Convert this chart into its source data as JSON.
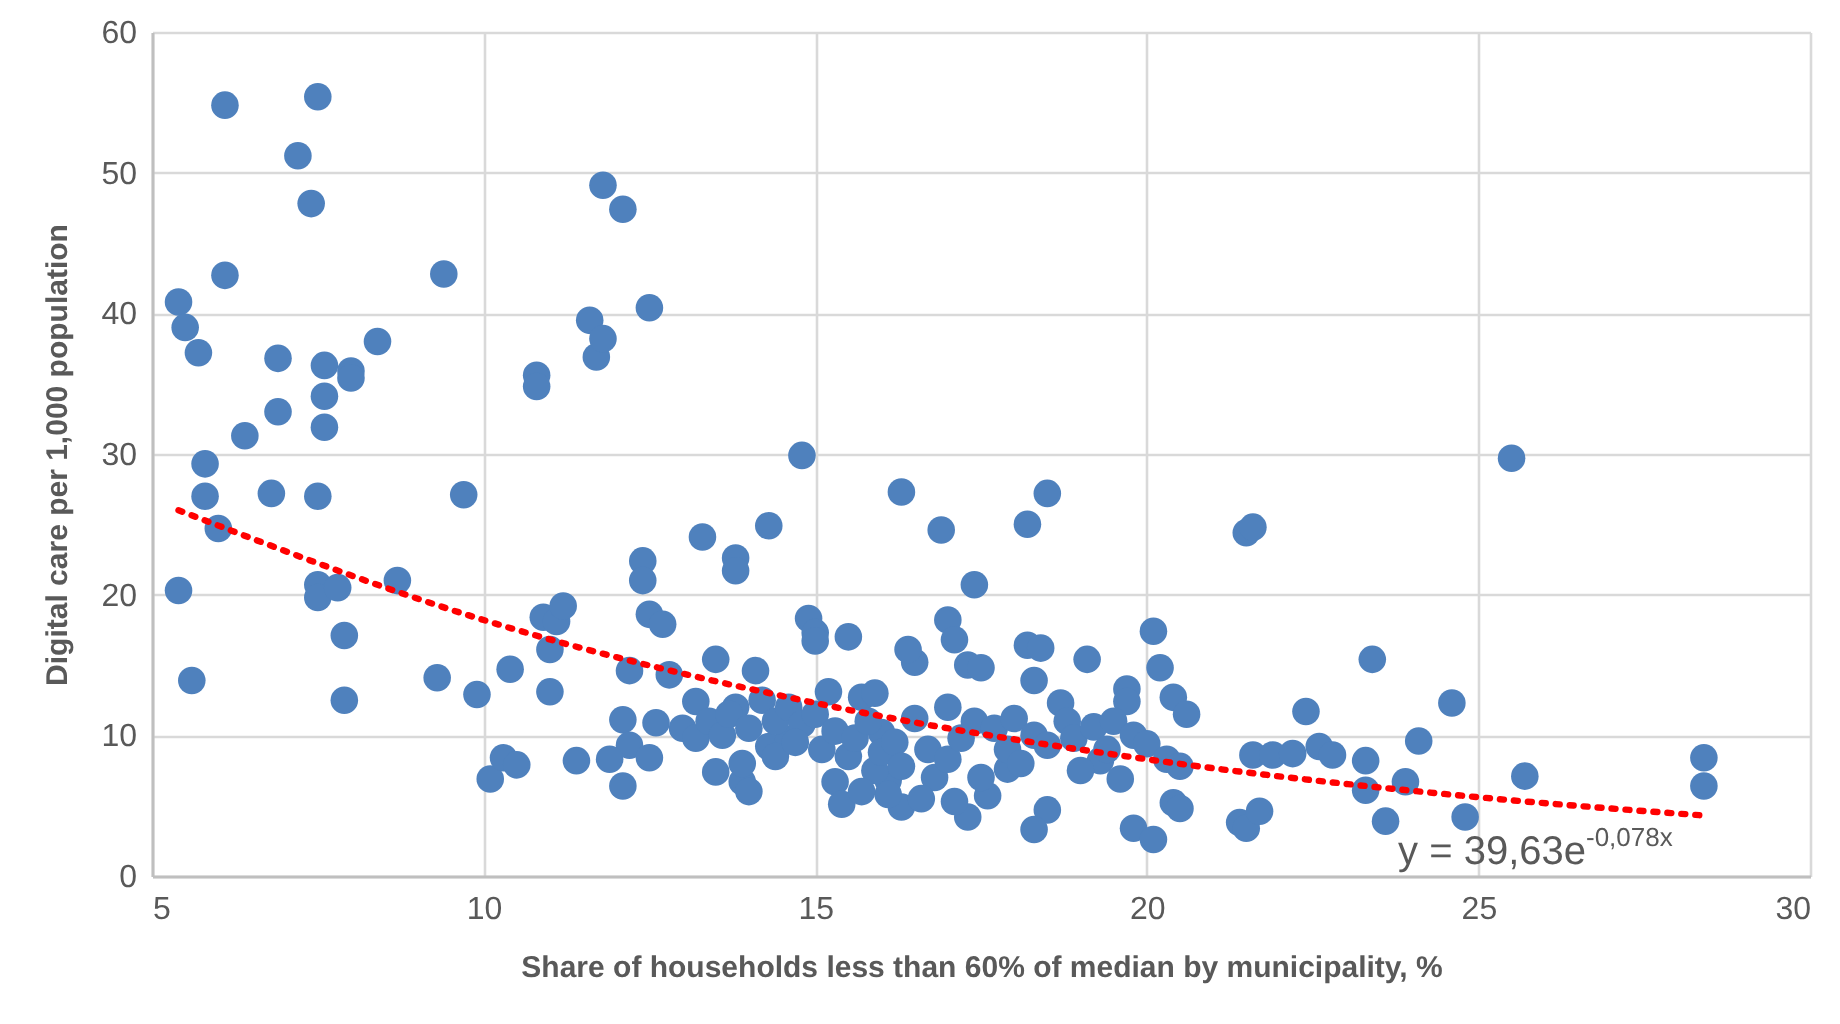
{
  "chart_data": {
    "type": "scatter",
    "xlabel": "Share of households less than 60% of median by municipality, %",
    "ylabel": "Digital care per 1,000 population",
    "xlim": [
      5,
      30
    ],
    "xticks": [
      5,
      10,
      15,
      20,
      25,
      30
    ],
    "ylim": [
      0,
      60
    ],
    "yticks": [
      0,
      10,
      20,
      30,
      40,
      50,
      60
    ],
    "grid": true,
    "marker": "circle",
    "annotations": [
      "y = 39,63e$^{-0,078x}$"
    ],
    "series": [
      {
        "color": "#4f81bd",
        "x": [
          5.4,
          5.5,
          5.7,
          6.1,
          6.1,
          5.8,
          5.8,
          6,
          6.4,
          6.9,
          6.9,
          6.8,
          7.2,
          7.4,
          7.5,
          7.6,
          7.6,
          7.6,
          7.5,
          8,
          8,
          8.4,
          7.5,
          7.5,
          7.8,
          7.9,
          7.9,
          8.7,
          5.4,
          5.6,
          9.4,
          9.7,
          9.3,
          9.9,
          10.1,
          10.3,
          10.5,
          10.4,
          10.8,
          10.8,
          10.9,
          11,
          11,
          11.1,
          11.2,
          11.4,
          11.6,
          11.7,
          11.8,
          11.8,
          12.1,
          12.5,
          12.2,
          12.4,
          12.4,
          12.5,
          12.7,
          12.8,
          12.1,
          12.2,
          12.1,
          12.5,
          11.9,
          12.6,
          13.3,
          13.8,
          13.8,
          13.2,
          13.5,
          13.5,
          13.9,
          14.1,
          14.3,
          14,
          14.3,
          14.6,
          14.8,
          14.9,
          15,
          15,
          15.5,
          15.2,
          15.7,
          15.9,
          15.3,
          15.4,
          16.1,
          16.3,
          16.3,
          16.5,
          16.4,
          16,
          16.9,
          17,
          17.4,
          17.1,
          17.3,
          17.5,
          17.3,
          17.1,
          17.6,
          17.9,
          18.2,
          18.5,
          18.2,
          18.4,
          18.3,
          18.7,
          19.1,
          19.3,
          19.7,
          19.7,
          18.5,
          18.3,
          19.6,
          19.8,
          20.1,
          20.2,
          20.4,
          20.6,
          20.1,
          20.4,
          20.5,
          21.5,
          21.6,
          21.4,
          21.5,
          21.7,
          21.6,
          21.9,
          22.2,
          22.4,
          22.6,
          22.8,
          23.3,
          23.4,
          23.3,
          23.6,
          23.9,
          24.1,
          24.6,
          24.8,
          25.5,
          25.7,
          28.4,
          28.4,
          13,
          13.2,
          13.4,
          13.6,
          13.8,
          13.7,
          14,
          14.2,
          14.4,
          14.6,
          14.8,
          15,
          15.1,
          15.3,
          15.5,
          15.6,
          15.8,
          15.9,
          16,
          16.2,
          16.3,
          16.5,
          16.7,
          16.8,
          17,
          17,
          17.2,
          17.4,
          17.5,
          17.7,
          17.9,
          18,
          18.1,
          18.3,
          18.5,
          18.8,
          18.9,
          19,
          19.2,
          19.4,
          19.5,
          19.8,
          20,
          20.3,
          20.5,
          14.4,
          14.7,
          13.9,
          16.6,
          16.1,
          15.7
        ],
        "values": [
          40.8,
          39,
          37.2,
          54.8,
          42.7,
          29.3,
          27,
          24.7,
          31.3,
          36.8,
          33,
          27.2,
          51.2,
          47.8,
          55.4,
          36.3,
          34.1,
          31.9,
          27,
          35.9,
          35.4,
          38,
          20.7,
          19.8,
          20.5,
          17.1,
          12.5,
          21,
          20.3,
          13.9,
          42.8,
          27.1,
          14.1,
          12.9,
          6.9,
          8.4,
          7.9,
          14.7,
          35.6,
          34.8,
          18.4,
          13.1,
          16.1,
          18.1,
          19.2,
          8.2,
          39.5,
          36.9,
          38.2,
          49.1,
          47.4,
          40.4,
          14.6,
          22.4,
          21,
          18.6,
          17.9,
          14.3,
          11.1,
          9.3,
          6.4,
          8.4,
          8.3,
          10.9,
          24.1,
          22.6,
          21.7,
          12.4,
          15.4,
          7.4,
          6.7,
          14.6,
          24.9,
          6,
          9.2,
          9.7,
          29.9,
          18.3,
          17.3,
          16.7,
          17,
          13.1,
          12.7,
          13,
          6.7,
          5.1,
          6.8,
          4.9,
          27.3,
          15.2,
          16.1,
          10.2,
          24.6,
          18.2,
          20.7,
          16.8,
          15,
          14.8,
          4.2,
          5.3,
          5.7,
          7.6,
          25,
          27.2,
          16.4,
          16.2,
          13.9,
          12.3,
          15.4,
          8.2,
          13.3,
          12.4,
          4.7,
          3.3,
          6.9,
          3.4,
          17.4,
          14.8,
          12.7,
          11.5,
          2.6,
          5.2,
          4.8,
          24.4,
          24.8,
          3.8,
          3.4,
          4.6,
          8.6,
          8.6,
          8.7,
          11.7,
          9.2,
          8.6,
          8.2,
          15.4,
          6.1,
          3.9,
          6.7,
          9.6,
          12.3,
          4.2,
          29.7,
          7.1,
          8.4,
          6.4,
          10.5,
          9.8,
          11,
          10,
          12,
          11.5,
          10.5,
          12.5,
          11,
          12,
          10.8,
          11.5,
          9,
          10.3,
          8.5,
          9.8,
          11,
          7.5,
          8.8,
          9.5,
          7.8,
          11.2,
          9,
          7,
          12,
          8.3,
          9.8,
          11,
          7,
          10.5,
          9,
          11.2,
          8,
          10,
          9.3,
          11,
          9.8,
          7.5,
          10.6,
          9,
          11,
          10,
          9.4,
          8.3,
          7.8,
          8.5,
          9.5,
          8,
          5.5,
          5.8,
          6
        ]
      },
      {
        "type": "line",
        "color": "#ff0000",
        "line_style": "dotted",
        "marker": "none",
        "x": [
          5.4,
          10,
          15,
          20,
          25,
          28.4
        ],
        "values": [
          26.0,
          18.2,
          12.3,
          8.3,
          5.6,
          4.3
        ]
      }
    ]
  }
}
